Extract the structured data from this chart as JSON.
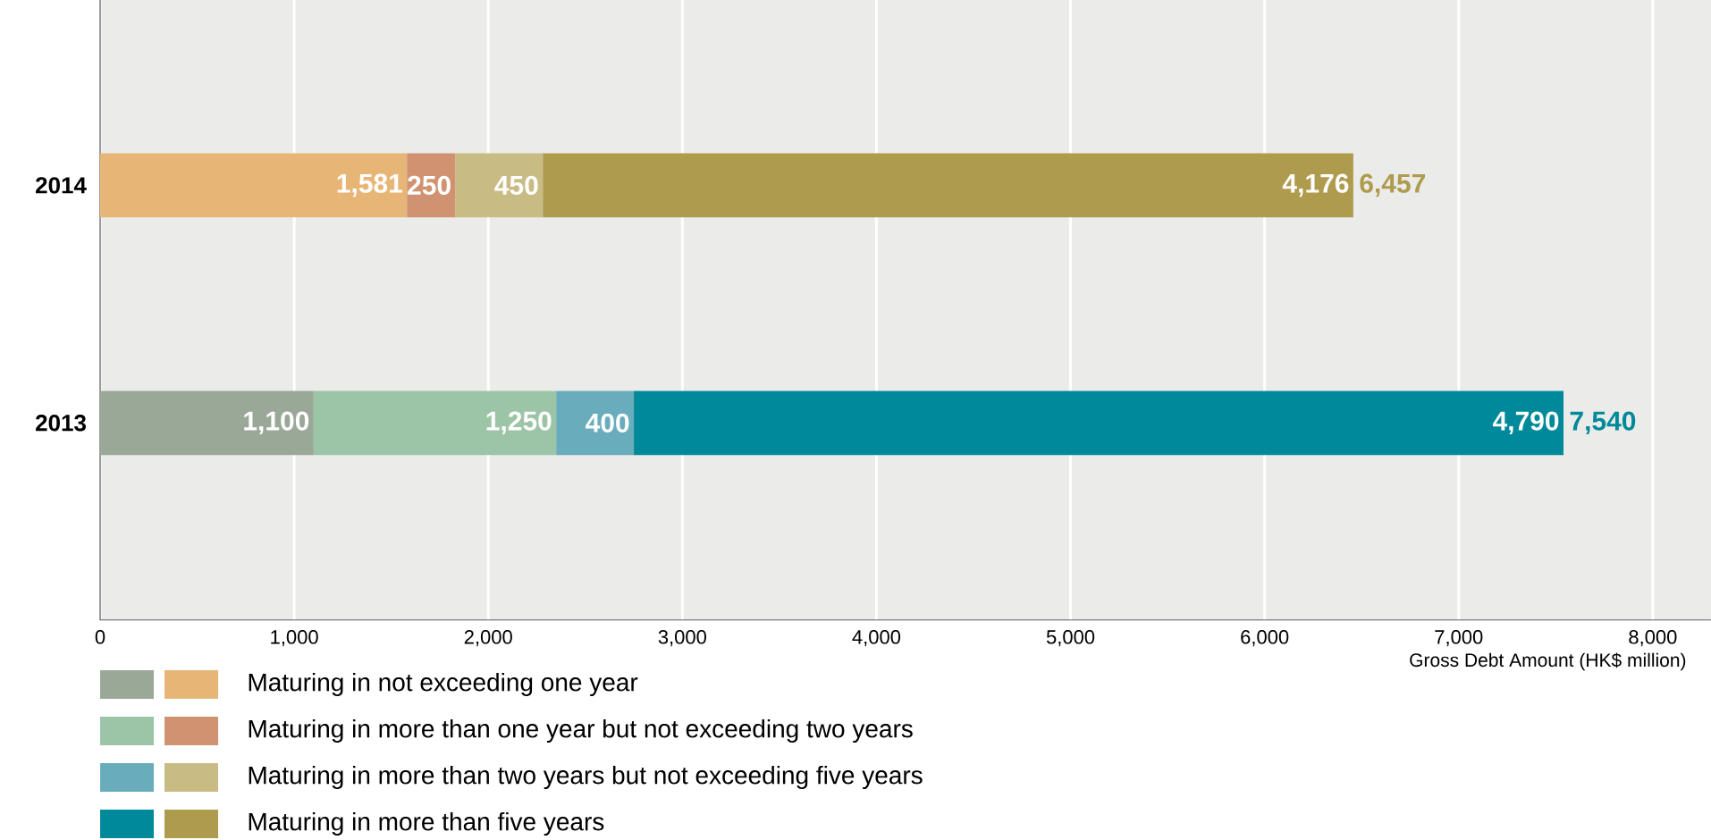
{
  "chart_data": {
    "type": "bar",
    "orientation": "horizontal",
    "stacked": true,
    "categories": [
      "2014",
      "2013"
    ],
    "series": [
      {
        "name": "Maturing in not exceeding one year",
        "colors": [
          "#e7b677",
          "#9aa898"
        ],
        "values": [
          1581,
          1100
        ],
        "value_labels": [
          "1,581",
          "1,100"
        ]
      },
      {
        "name": "Maturing in more than one year but not exceeding two years",
        "colors": [
          "#d09270",
          "#9cc4a7"
        ],
        "values": [
          250,
          1250
        ],
        "value_labels": [
          "250",
          "1,250"
        ]
      },
      {
        "name": "Maturing in more than two years but not exceeding five years",
        "colors": [
          "#c9bb84",
          "#69acbb"
        ],
        "values": [
          450,
          400
        ],
        "value_labels": [
          "450",
          "400"
        ]
      },
      {
        "name": "Maturing in more than five years",
        "colors": [
          "#af9b4d",
          "#00899a"
        ],
        "values": [
          4176,
          4790
        ],
        "value_labels": [
          "4,176",
          "4,790"
        ]
      }
    ],
    "totals": [
      "6,457",
      "7,540"
    ],
    "xlabel": "Gross Debt Amount (HK$ million)",
    "xlim": [
      0,
      8300
    ],
    "xticks": [
      0,
      {
        "value": 1000,
        "label": "1,000"
      },
      {
        "value": 2000,
        "label": "2,000"
      },
      {
        "value": 3000,
        "label": "3,000"
      },
      {
        "value": 4000,
        "label": "4,000"
      },
      {
        "value": 5000,
        "label": "5,000"
      },
      {
        "value": 6000,
        "label": "6,000"
      },
      {
        "value": 7000,
        "label": "7,000"
      },
      {
        "value": 8000,
        "label": "8,000"
      }
    ],
    "grid": "x",
    "legend": "bottom"
  }
}
